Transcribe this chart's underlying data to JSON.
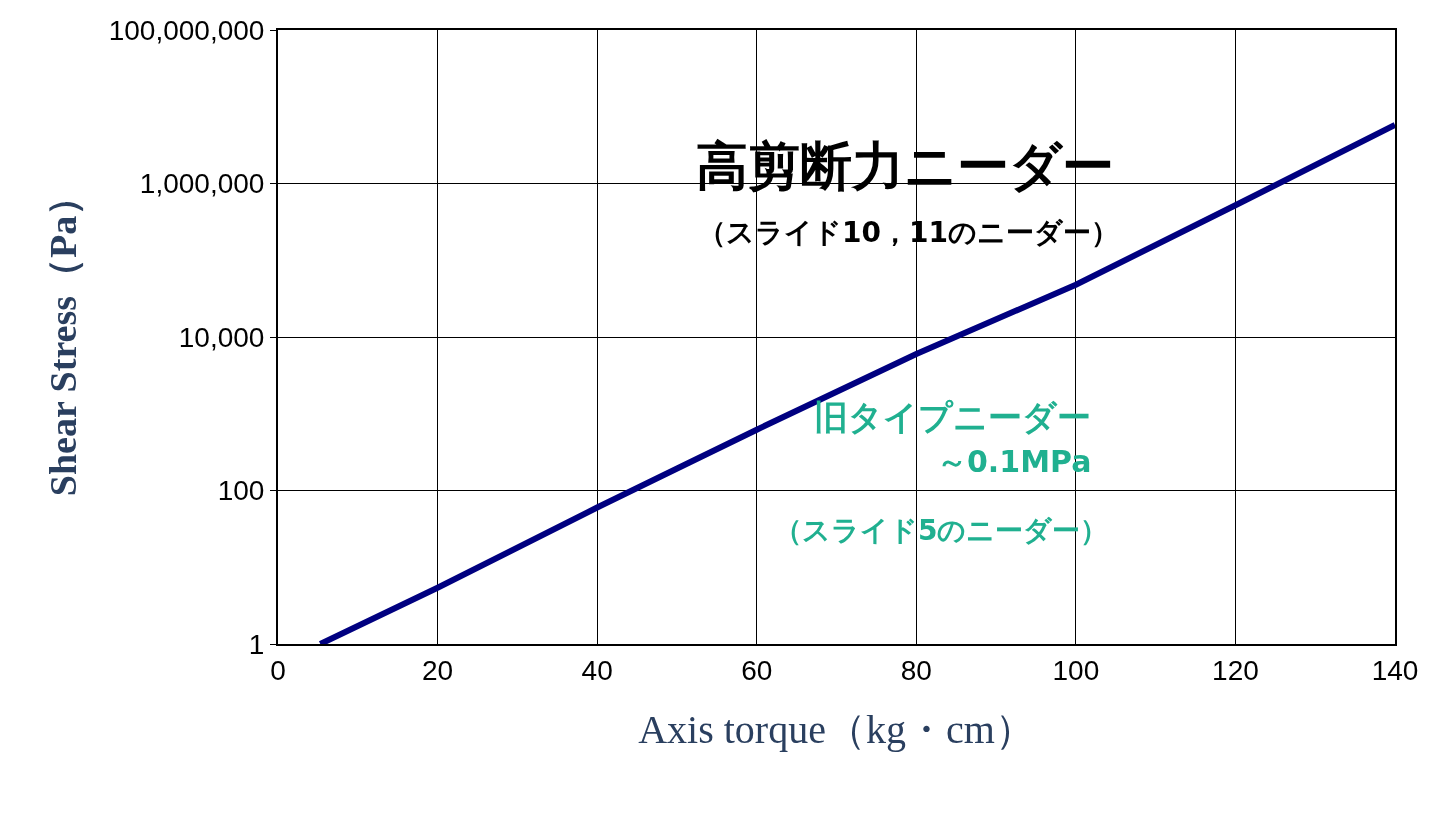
{
  "chart_data": {
    "type": "line",
    "xlabel": "Axis torque（kg・cm）",
    "ylabel": "Shear Stress（Pa）",
    "x": [
      5.3,
      20,
      40,
      51.5,
      60,
      80,
      100,
      120,
      140
    ],
    "series": [
      {
        "color": "#000080",
        "values": [
          1,
          5.4,
          60,
          230,
          620,
          6000,
          48000,
          520000,
          5800000
        ]
      }
    ],
    "xlim": [
      0,
      140
    ],
    "xticks": [
      0,
      20,
      40,
      60,
      80,
      100,
      120,
      140
    ],
    "ylim": [
      1,
      100000000
    ],
    "log": true,
    "yticks": [
      1,
      100,
      {
        "value": 10000,
        "label": "10,000"
      },
      {
        "value": 1000000,
        "label": "1,000,000"
      },
      {
        "value": 100000000,
        "label": "100,000,000"
      }
    ],
    "grid": true,
    "legend": false,
    "marker": "none",
    "line_style": "solid",
    "annotations": [
      "高剪断力ニーダー",
      "（スライド10，11のニーダー）",
      "旧タイプニーダー",
      "～0.1MPa",
      "（スライド5のニーダー）"
    ]
  }
}
